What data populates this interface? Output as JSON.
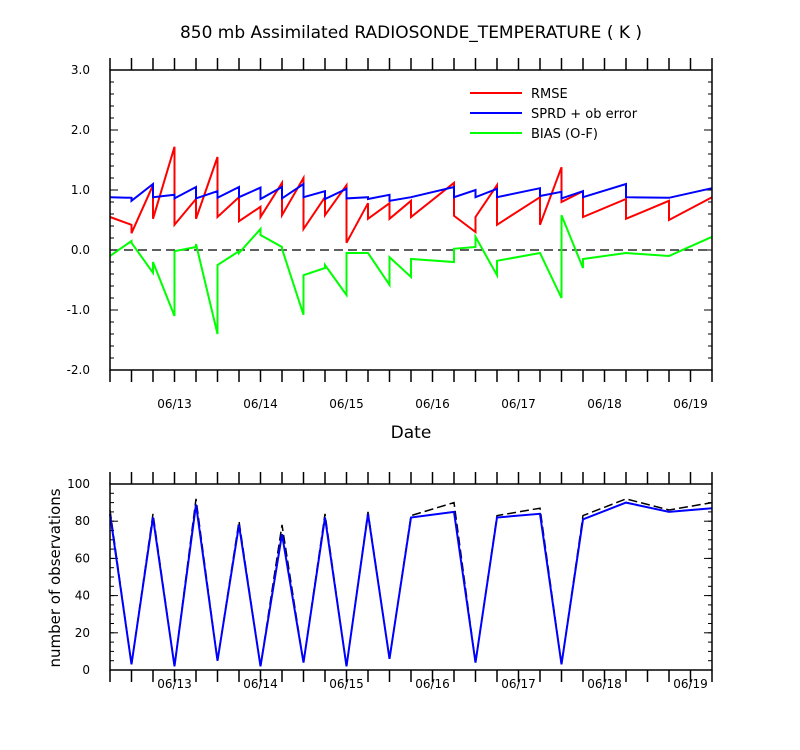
{
  "chart_data": [
    {
      "type": "line",
      "title": "850 mb Assimilated RADIOSONDE_TEMPERATURE ( K )",
      "xlabel": "Date",
      "ylabel": "",
      "ylim": [
        -2.0,
        3.0
      ],
      "yticks": [
        "3.0",
        "2.0",
        "1.0",
        "0.0",
        "-1.0",
        "-2.0"
      ],
      "xtick_labels": [
        "06/13",
        "06/14",
        "06/15",
        "06/16",
        "06/17",
        "06/18",
        "06/19"
      ],
      "zero_line": true,
      "legend_position": "top-right",
      "series": [
        {
          "name": "RMSE",
          "color": "#ff0000",
          "points": [
            [
              0.0,
              0.55
            ],
            [
              0.25,
              0.42
            ],
            [
              0.25,
              0.28
            ],
            [
              0.5,
              1.08
            ],
            [
              0.5,
              0.52
            ],
            [
              0.75,
              1.72
            ],
            [
              0.75,
              0.42
            ],
            [
              1.0,
              0.85
            ],
            [
              1.0,
              0.52
            ],
            [
              1.25,
              1.55
            ],
            [
              1.25,
              0.55
            ],
            [
              1.5,
              0.88
            ],
            [
              1.5,
              0.48
            ],
            [
              1.75,
              0.72
            ],
            [
              1.75,
              0.55
            ],
            [
              2.0,
              1.12
            ],
            [
              2.0,
              0.58
            ],
            [
              2.25,
              1.2
            ],
            [
              2.25,
              0.35
            ],
            [
              2.5,
              0.88
            ],
            [
              2.5,
              0.58
            ],
            [
              2.75,
              1.08
            ],
            [
              2.75,
              0.12
            ],
            [
              3.0,
              0.78
            ],
            [
              3.0,
              0.52
            ],
            [
              3.25,
              0.78
            ],
            [
              3.25,
              0.52
            ],
            [
              3.5,
              0.82
            ],
            [
              3.5,
              0.55
            ],
            [
              4.0,
              1.12
            ],
            [
              4.0,
              0.57
            ],
            [
              4.25,
              0.3
            ],
            [
              4.25,
              0.55
            ],
            [
              4.5,
              1.08
            ],
            [
              4.5,
              0.42
            ],
            [
              5.0,
              0.88
            ],
            [
              5.0,
              0.42
            ],
            [
              5.25,
              1.38
            ],
            [
              5.25,
              0.8
            ],
            [
              5.5,
              0.98
            ],
            [
              5.5,
              0.55
            ],
            [
              6.0,
              0.85
            ],
            [
              6.0,
              0.52
            ],
            [
              6.5,
              0.82
            ],
            [
              6.5,
              0.5
            ],
            [
              7.0,
              0.88
            ]
          ]
        },
        {
          "name": "SPRD + ob error",
          "color": "#0000ff",
          "points": [
            [
              0.0,
              0.88
            ],
            [
              0.25,
              0.87
            ],
            [
              0.25,
              0.82
            ],
            [
              0.5,
              1.1
            ],
            [
              0.5,
              0.88
            ],
            [
              0.75,
              0.92
            ],
            [
              0.75,
              0.86
            ],
            [
              1.0,
              1.05
            ],
            [
              1.0,
              0.86
            ],
            [
              1.25,
              0.98
            ],
            [
              1.25,
              0.87
            ],
            [
              1.5,
              1.05
            ],
            [
              1.5,
              0.88
            ],
            [
              1.75,
              1.04
            ],
            [
              1.75,
              0.85
            ],
            [
              2.0,
              1.05
            ],
            [
              2.0,
              0.86
            ],
            [
              2.25,
              1.1
            ],
            [
              2.25,
              0.88
            ],
            [
              2.5,
              0.98
            ],
            [
              2.5,
              0.85
            ],
            [
              2.75,
              1.02
            ],
            [
              2.75,
              0.86
            ],
            [
              3.0,
              0.88
            ],
            [
              3.0,
              0.85
            ],
            [
              3.25,
              0.92
            ],
            [
              3.25,
              0.82
            ],
            [
              3.5,
              0.88
            ],
            [
              4.0,
              1.05
            ],
            [
              4.0,
              0.88
            ],
            [
              4.25,
              1.0
            ],
            [
              4.25,
              0.88
            ],
            [
              4.5,
              1.02
            ],
            [
              4.5,
              0.88
            ],
            [
              5.0,
              1.03
            ],
            [
              5.0,
              0.9
            ],
            [
              5.25,
              0.97
            ],
            [
              5.25,
              0.86
            ],
            [
              5.5,
              0.98
            ],
            [
              5.5,
              0.88
            ],
            [
              6.0,
              1.1
            ],
            [
              6.0,
              0.88
            ],
            [
              6.5,
              0.87
            ],
            [
              7.0,
              1.03
            ]
          ]
        },
        {
          "name": "BIAS (O-F)",
          "color": "#00ff00",
          "points": [
            [
              0.0,
              -0.1
            ],
            [
              0.25,
              0.15
            ],
            [
              0.25,
              0.12
            ],
            [
              0.5,
              -0.38
            ],
            [
              0.5,
              -0.2
            ],
            [
              0.75,
              -1.1
            ],
            [
              0.75,
              -0.02
            ],
            [
              1.0,
              0.05
            ],
            [
              1.0,
              0.1
            ],
            [
              1.25,
              -1.4
            ],
            [
              1.25,
              -0.25
            ],
            [
              1.5,
              -0.02
            ],
            [
              1.5,
              -0.05
            ],
            [
              1.75,
              0.35
            ],
            [
              1.75,
              0.25
            ],
            [
              2.0,
              0.05
            ],
            [
              2.0,
              0.02
            ],
            [
              2.25,
              -1.08
            ],
            [
              2.25,
              -0.42
            ],
            [
              2.5,
              -0.3
            ],
            [
              2.5,
              -0.25
            ],
            [
              2.75,
              -0.75
            ],
            [
              2.75,
              -0.05
            ],
            [
              3.0,
              -0.05
            ],
            [
              3.25,
              -0.58
            ],
            [
              3.25,
              -0.12
            ],
            [
              3.5,
              -0.45
            ],
            [
              3.5,
              -0.15
            ],
            [
              4.0,
              -0.2
            ],
            [
              4.0,
              0.02
            ],
            [
              4.25,
              0.05
            ],
            [
              4.25,
              0.22
            ],
            [
              4.5,
              -0.42
            ],
            [
              4.5,
              -0.18
            ],
            [
              5.0,
              -0.05
            ],
            [
              5.25,
              -0.8
            ],
            [
              5.25,
              0.58
            ],
            [
              5.5,
              -0.3
            ],
            [
              5.5,
              -0.15
            ],
            [
              6.0,
              -0.05
            ],
            [
              6.5,
              -0.1
            ],
            [
              7.0,
              0.22
            ]
          ]
        }
      ]
    },
    {
      "type": "line",
      "title": "",
      "xlabel": "",
      "ylabel": "number of observations",
      "ylim": [
        0,
        100
      ],
      "yticks": [
        "100",
        "80",
        "60",
        "40",
        "20",
        "0"
      ],
      "xtick_labels": [
        "06/13",
        "06/14",
        "06/15",
        "06/16",
        "06/17",
        "06/18",
        "06/19"
      ],
      "series": [
        {
          "style": "dashed",
          "color": "#000000",
          "points": [
            [
              0.0,
              86
            ],
            [
              0.25,
              3
            ],
            [
              0.5,
              84
            ],
            [
              0.75,
              2
            ],
            [
              1.0,
              92
            ],
            [
              1.25,
              5
            ],
            [
              1.5,
              80
            ],
            [
              1.75,
              2
            ],
            [
              2.0,
              78
            ],
            [
              2.25,
              4
            ],
            [
              2.5,
              84
            ],
            [
              2.75,
              2
            ],
            [
              3.0,
              85
            ],
            [
              3.25,
              6
            ],
            [
              3.5,
              83
            ],
            [
              4.0,
              90
            ],
            [
              4.25,
              4
            ],
            [
              4.5,
              83
            ],
            [
              5.0,
              87
            ],
            [
              5.25,
              3
            ],
            [
              5.5,
              83
            ],
            [
              6.0,
              92
            ],
            [
              6.5,
              86
            ],
            [
              7.0,
              90
            ]
          ]
        },
        {
          "style": "solid",
          "color": "#0000ff",
          "points": [
            [
              0.0,
              84
            ],
            [
              0.25,
              3
            ],
            [
              0.5,
              82
            ],
            [
              0.75,
              2
            ],
            [
              1.0,
              89
            ],
            [
              1.25,
              5
            ],
            [
              1.5,
              78
            ],
            [
              1.75,
              2
            ],
            [
              2.0,
              73
            ],
            [
              2.25,
              4
            ],
            [
              2.5,
              82
            ],
            [
              2.75,
              2
            ],
            [
              3.0,
              84
            ],
            [
              3.25,
              6
            ],
            [
              3.5,
              82
            ],
            [
              4.0,
              85
            ],
            [
              4.25,
              4
            ],
            [
              4.5,
              82
            ],
            [
              5.0,
              84
            ],
            [
              5.25,
              3
            ],
            [
              5.5,
              81
            ],
            [
              6.0,
              90
            ],
            [
              6.5,
              85
            ],
            [
              7.0,
              87
            ]
          ]
        }
      ]
    }
  ]
}
